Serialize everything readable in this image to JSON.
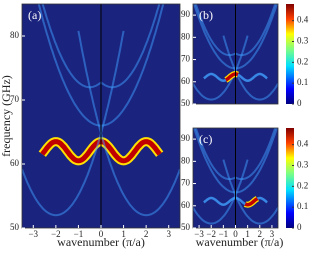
{
  "chart_data": [
    {
      "type": "heatmap",
      "panel_label": "(a)",
      "xlabel": "wavenumber (π/a)",
      "ylabel": "frequency (GHz)",
      "xlim": [
        -3.5,
        3.5
      ],
      "ylim": [
        50,
        85
      ],
      "xticks": [
        {
          "value": -3,
          "label": "−3"
        },
        {
          "value": -2,
          "label": "−2"
        },
        {
          "value": -1,
          "label": "−1"
        },
        0,
        1,
        2,
        3
      ],
      "yticks": [
        50,
        60,
        70,
        80
      ]
    },
    {
      "type": "heatmap",
      "panel_label": "(b)",
      "xlim": [
        -3.5,
        3.5
      ],
      "ylim": [
        50,
        95
      ],
      "yticks": [
        50,
        60,
        70,
        80,
        90
      ],
      "clim": [
        0,
        0.48
      ],
      "cticks": [
        0,
        0.1,
        0.2,
        0.3,
        0.4
      ]
    },
    {
      "type": "heatmap",
      "panel_label": "(c)",
      "xlabel": "wavenumber (π/a)",
      "xlim": [
        -3.5,
        3.5
      ],
      "ylim": [
        50,
        95
      ],
      "xticks": [
        {
          "value": -3,
          "label": "−3"
        },
        {
          "value": -2,
          "label": "−2"
        },
        {
          "value": -1,
          "label": "−1"
        },
        0,
        1,
        2,
        3
      ],
      "yticks": [
        50,
        60,
        70,
        80,
        90
      ],
      "clim": [
        0,
        0.48
      ],
      "cticks": [
        0,
        0.1,
        0.2,
        0.3,
        0.4
      ]
    }
  ]
}
